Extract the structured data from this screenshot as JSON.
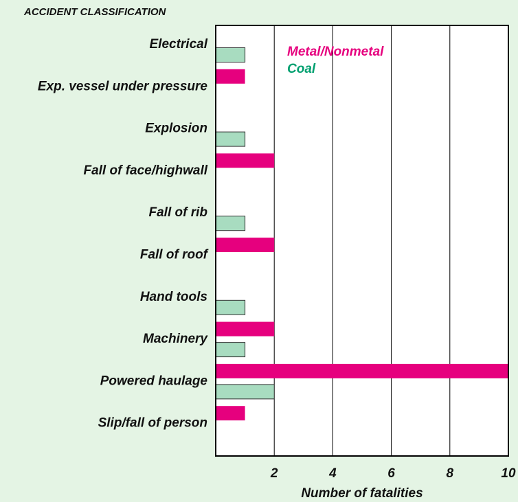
{
  "chart_data": {
    "type": "barh",
    "title": "ACCIDENT CLASSIFICATION",
    "xlabel": "Number of fatalities",
    "categories": [
      "Electrical",
      "Exp. vessel under pressure",
      "Explosion",
      "Fall of face/highwall",
      "Fall of rib",
      "Fall of roof",
      "Hand tools",
      "Machinery",
      "Powered haulage",
      "Slip/fall of person"
    ],
    "series": [
      {
        "name": "Metal/Nonmetal",
        "color": "#e6007e",
        "values": [
          null,
          1,
          null,
          2,
          null,
          2,
          null,
          2,
          10,
          1
        ]
      },
      {
        "name": "Coal",
        "color": "#a8dcc0",
        "values": [
          1,
          null,
          1,
          null,
          1,
          null,
          1,
          1,
          2,
          null
        ]
      }
    ],
    "xlim": [
      0,
      10
    ],
    "xticks": [
      2,
      4,
      6,
      8,
      10
    ],
    "grid": true
  }
}
